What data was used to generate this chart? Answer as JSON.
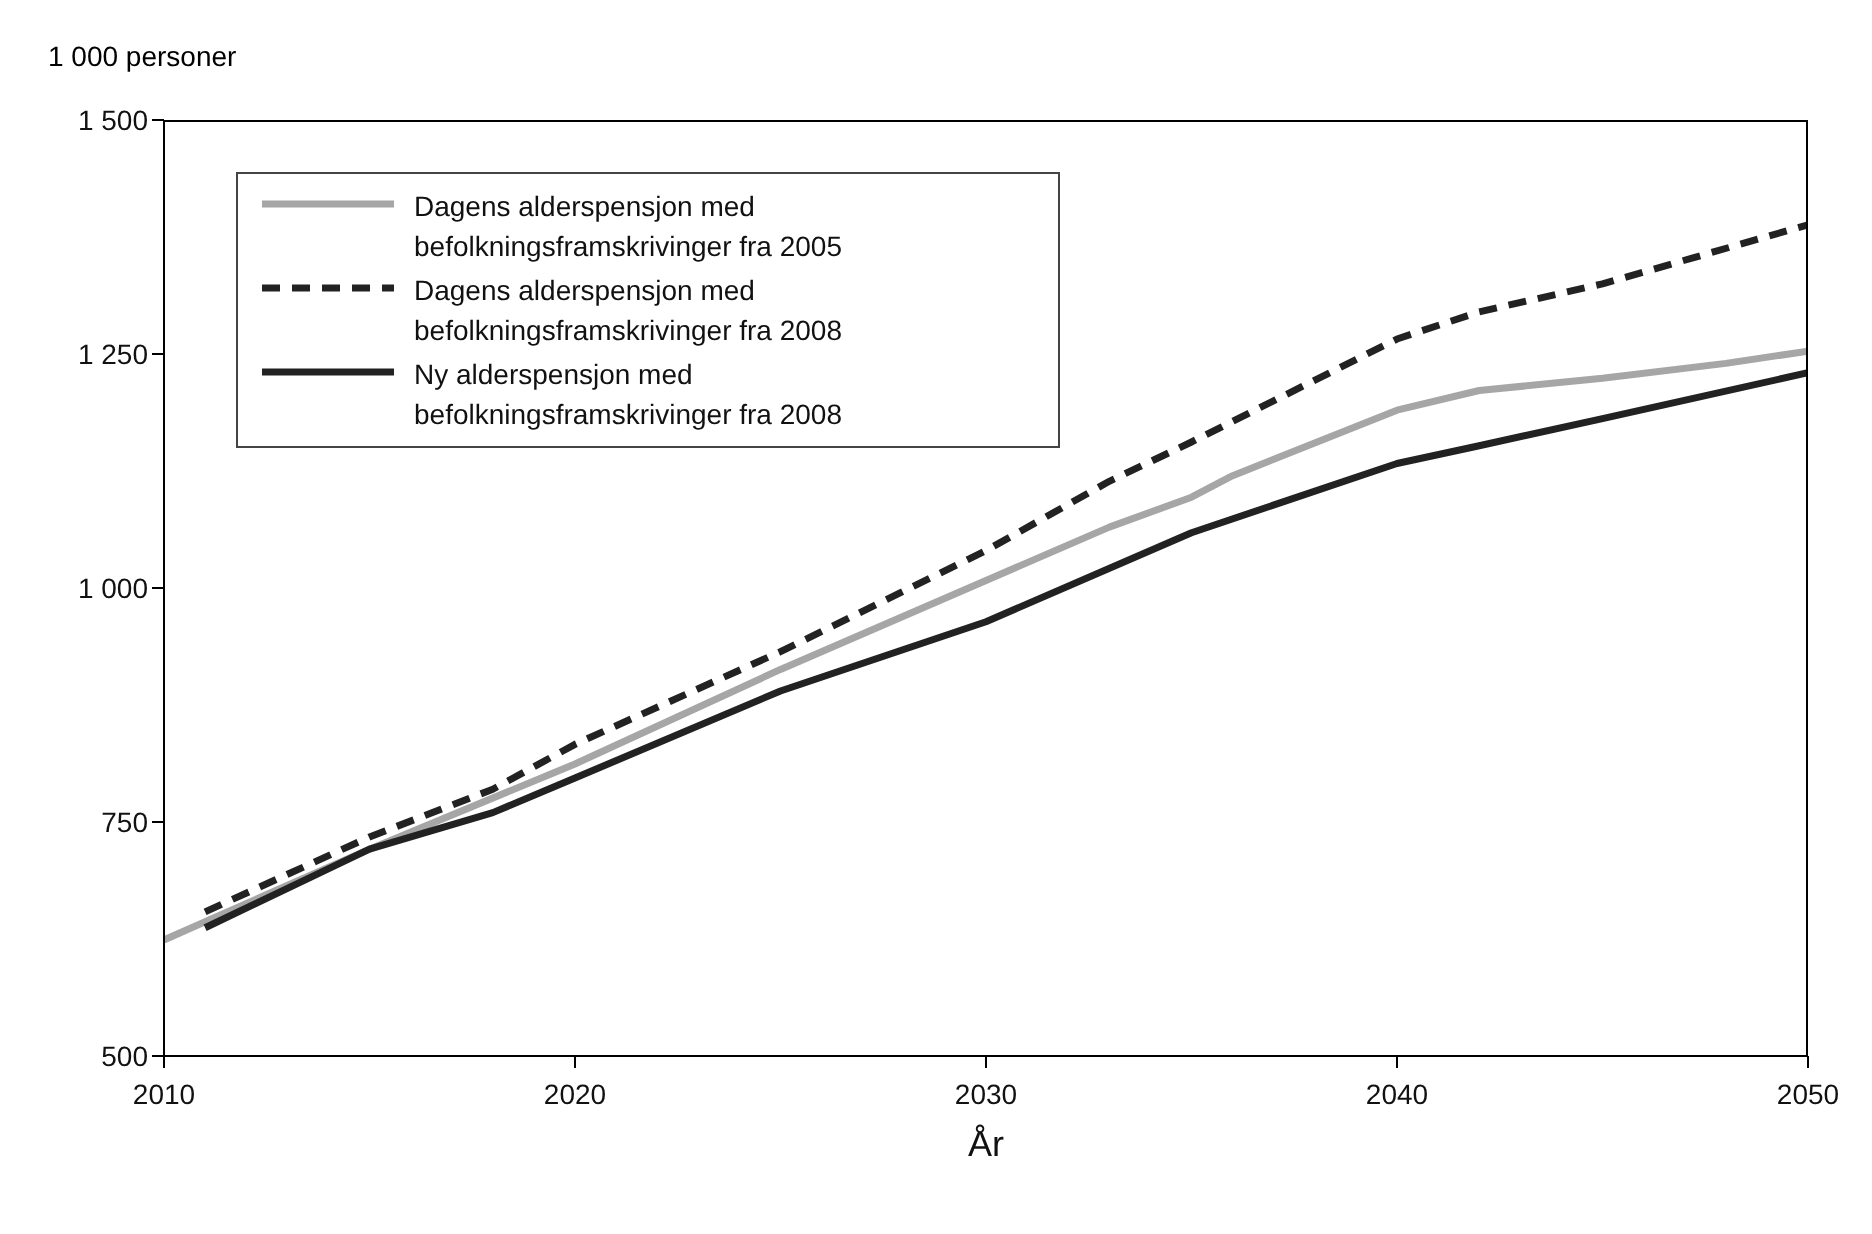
{
  "chart_data": {
    "type": "line",
    "ylabel": "1 000 personer",
    "xlabel": "År",
    "xlim": [
      2010,
      2050
    ],
    "xticks": [
      2010,
      2020,
      2030,
      2040,
      2050
    ],
    "ylim": [
      500,
      1500
    ],
    "yticks": [
      {
        "value": 500,
        "label": "500"
      },
      {
        "value": 750,
        "label": "750"
      },
      {
        "value": 1000,
        "label": "1 000"
      },
      {
        "value": 1250,
        "label": "1 250"
      },
      {
        "value": 1500,
        "label": "1 500"
      }
    ],
    "grid": false,
    "legend": "top left",
    "marker": "none",
    "series": [
      {
        "name": "Dagens alderspensjon med befolkningsframskrivinger fra 2005",
        "color": "#a6a6a6",
        "line_style": "solid",
        "x": [
          2010,
          2015,
          2020,
          2025,
          2030,
          2033,
          2035,
          2036,
          2040,
          2042,
          2045,
          2048,
          2050
        ],
        "values": [
          624,
          721,
          812,
          913,
          1008,
          1065,
          1097,
          1120,
          1190,
          1211,
          1224,
          1240,
          1253
        ]
      },
      {
        "name": "Dagens alderspensjon med befolkningsframskrivinger fra 2008",
        "color": "#222222",
        "line_style": "dashed",
        "x": [
          2011,
          2015,
          2018,
          2020,
          2025,
          2030,
          2033,
          2035,
          2040,
          2042,
          2045,
          2050
        ],
        "values": [
          654,
          734,
          785,
          833,
          932,
          1040,
          1114,
          1156,
          1266,
          1295,
          1325,
          1388
        ]
      },
      {
        "name": "Ny alderspensjon med befolkningsframskrivinger fra 2008",
        "color": "#222222",
        "line_style": "solid",
        "x": [
          2011,
          2015,
          2018,
          2020,
          2025,
          2030,
          2035,
          2040,
          2042,
          2045,
          2050
        ],
        "values": [
          637,
          721,
          760,
          797,
          890,
          964,
          1059,
          1133,
          1152,
          1181,
          1230
        ]
      }
    ]
  }
}
